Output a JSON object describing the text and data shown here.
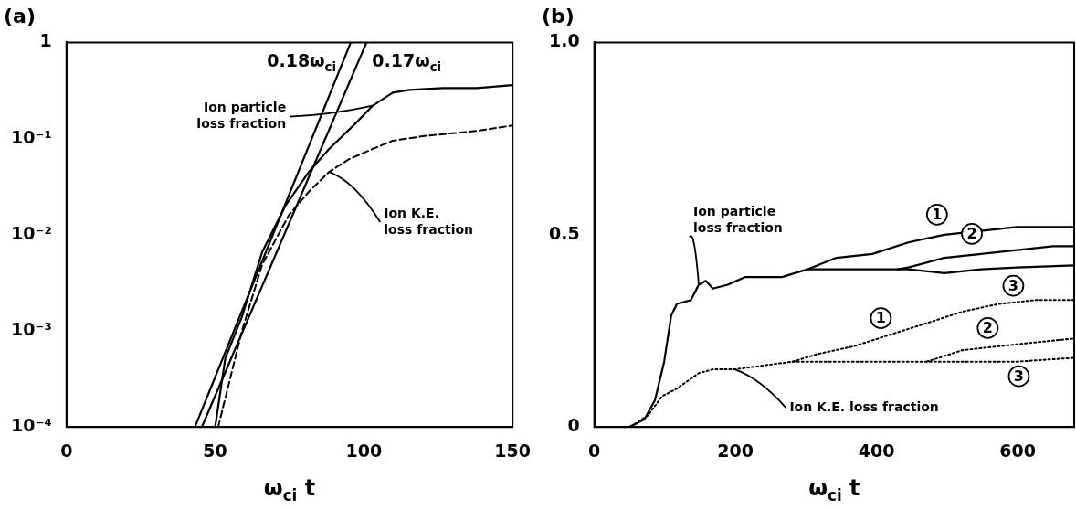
{
  "chart_data": [
    {
      "type": "line",
      "title": "(a)",
      "xlabel": "ω$_{ci}$ t",
      "log": "y",
      "xlim": [
        0,
        150
      ],
      "xticks": [
        0,
        50,
        100,
        150
      ],
      "ylim": [
        0.0001,
        1
      ],
      "yticks": [
        {
          "value": 0.0001,
          "label": "10⁻⁴"
        },
        {
          "value": 0.001,
          "label": "10⁻³"
        },
        {
          "value": 0.01,
          "label": "10⁻²"
        },
        {
          "value": 0.1,
          "label": "10⁻¹"
        },
        1
      ],
      "annotations": [
        {
          "text": "Ion particle loss fraction",
          "x": 103,
          "y": 0.22
        },
        {
          "text": "Ion K.E. loss fraction",
          "x": 88.3,
          "y": 0.045
        }
      ],
      "series": [
        {
          "color": "#000000",
          "line_style": "solid",
          "x": [
            50,
            53.4,
            59,
            65.8,
            73.6,
            81.5,
            88.3,
            97.3,
            103,
            109.7,
            115.3,
            126.6,
            138,
            150
          ],
          "values": [
            0.0001,
            0.00052,
            0.0014,
            0.0066,
            0.02,
            0.045,
            0.078,
            0.145,
            0.22,
            0.3,
            0.32,
            0.335,
            0.335,
            0.36
          ]
        },
        {
          "color": "#000000",
          "line_style": "dashed",
          "x": [
            51,
            59,
            65.8,
            74.8,
            81.5,
            88.3,
            95,
            103,
            109.7,
            121,
            138,
            150
          ],
          "values": [
            0.0001,
            0.001,
            0.0049,
            0.016,
            0.028,
            0.045,
            0.061,
            0.078,
            0.095,
            0.107,
            0.12,
            0.137
          ]
        },
        {
          "name": "0.18ω$_{ci}$",
          "color": "#000000",
          "line_style": "solid",
          "x": [
            43.2,
            95.6
          ],
          "values": [
            0.0001,
            1
          ]
        },
        {
          "name": "0.17ω$_{ci}$",
          "color": "#000000",
          "line_style": "solid",
          "x": [
            45.5,
            100.9
          ],
          "values": [
            0.0001,
            1
          ]
        }
      ]
    },
    {
      "type": "line",
      "title": "(b)",
      "xlabel": "ω$_{ci}$ t",
      "xlim": [
        0,
        680
      ],
      "xticks": [
        0,
        200,
        400,
        600
      ],
      "ylim": [
        0,
        1
      ],
      "yticks": [
        0,
        0.5,
        {
          "value": 1,
          "label": "1.0"
        }
      ],
      "annotations": [
        {
          "text": "Ion particle loss fraction",
          "x": 148,
          "y": 0.37
        },
        {
          "text": "Ion K.E. loss fraction",
          "x": 199,
          "y": 0.15
        }
      ],
      "series": [
        {
          "name": "1",
          "color": "#000000",
          "line_style": "solid",
          "x": [
            0,
            50,
            71,
            86,
            99,
            109,
            117,
            137,
            148,
            158,
            168,
            189,
            214,
            266,
            302,
            343,
            394,
            445,
            496,
            548,
            599,
            680
          ],
          "values": [
            0,
            0,
            0.02,
            0.07,
            0.17,
            0.29,
            0.32,
            0.33,
            0.37,
            0.38,
            0.36,
            0.37,
            0.39,
            0.39,
            0.41,
            0.44,
            0.45,
            0.48,
            0.5,
            0.51,
            0.52,
            0.52
          ]
        },
        {
          "name": "2",
          "color": "#000000",
          "line_style": "solid",
          "x": [
            430,
            445,
            496,
            548,
            599,
            650,
            680
          ],
          "values": [
            0.41,
            0.415,
            0.44,
            0.45,
            0.46,
            0.47,
            0.47
          ]
        },
        {
          "name": "3",
          "color": "#000000",
          "line_style": "solid",
          "x": [
            302,
            343,
            394,
            430,
            445,
            496,
            548,
            599,
            680
          ],
          "values": [
            0.41,
            0.41,
            0.41,
            0.41,
            0.41,
            0.4,
            0.41,
            0.415,
            0.42
          ]
        },
        {
          "name": "1",
          "color": "#000000",
          "line_style": "dotted",
          "x": [
            0,
            50,
            76,
            96,
            117,
            148,
            168,
            199,
            240,
            281,
            317,
            368,
            419,
            471,
            522,
            573,
            625,
            680
          ],
          "values": [
            0,
            0,
            0.03,
            0.08,
            0.1,
            0.14,
            0.15,
            0.15,
            0.16,
            0.17,
            0.19,
            0.21,
            0.24,
            0.27,
            0.3,
            0.32,
            0.33,
            0.33
          ]
        },
        {
          "name": "2",
          "color": "#000000",
          "line_style": "dotted",
          "x": [
            471,
            522,
            573,
            625,
            680
          ],
          "values": [
            0.17,
            0.2,
            0.21,
            0.22,
            0.23
          ]
        },
        {
          "name": "3",
          "color": "#000000",
          "line_style": "dotted",
          "x": [
            281,
            343,
            394,
            445,
            471,
            496,
            548,
            599,
            680
          ],
          "values": [
            0.17,
            0.17,
            0.17,
            0.17,
            0.17,
            0.17,
            0.17,
            0.17,
            0.18
          ]
        }
      ]
    }
  ]
}
